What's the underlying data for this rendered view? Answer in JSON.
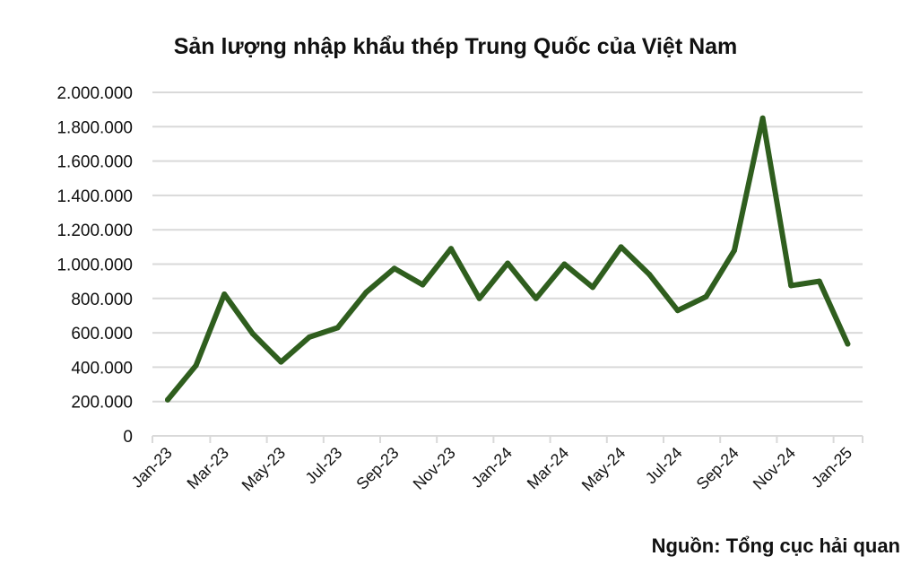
{
  "chart_data": {
    "type": "line",
    "title": "Sản lượng nhập khẩu thép Trung Quốc của Việt Nam",
    "xlabel": "",
    "ylabel": "",
    "ylim": [
      0,
      2000000
    ],
    "yticks": [
      "0",
      "200.000",
      "400.000",
      "600.000",
      "800.000",
      "1.000.000",
      "1.200.000",
      "1.400.000",
      "1.600.000",
      "1.800.000",
      "2.000.000"
    ],
    "grid": "horizontal",
    "legend": "none",
    "x": [
      "Jan-23",
      "Feb-23",
      "Mar-23",
      "Apr-23",
      "May-23",
      "Jun-23",
      "Jul-23",
      "Aug-23",
      "Sep-23",
      "Oct-23",
      "Nov-23",
      "Dec-23",
      "Jan-24",
      "Feb-24",
      "Mar-24",
      "Apr-24",
      "May-24",
      "Jun-24",
      "Jul-24",
      "Aug-24",
      "Sep-24",
      "Oct-24",
      "Nov-24",
      "Dec-24",
      "Jan-25"
    ],
    "xtick_labels": [
      "Jan-23",
      "Mar-23",
      "May-23",
      "Jul-23",
      "Sep-23",
      "Nov-23",
      "Jan-24",
      "Mar-24",
      "May-24",
      "Jul-24",
      "Sep-24",
      "Nov-24",
      "Jan-25"
    ],
    "series": [
      {
        "values": [
          210000,
          410000,
          825000,
          595000,
          430000,
          575000,
          630000,
          835000,
          975000,
          880000,
          1090000,
          800000,
          1005000,
          800000,
          1000000,
          865000,
          1100000,
          940000,
          730000,
          810000,
          1080000,
          1850000,
          875000,
          900000,
          535000
        ],
        "color": "#2f5e1e"
      }
    ],
    "source": "Nguồn: Tổng cục hải quan"
  }
}
